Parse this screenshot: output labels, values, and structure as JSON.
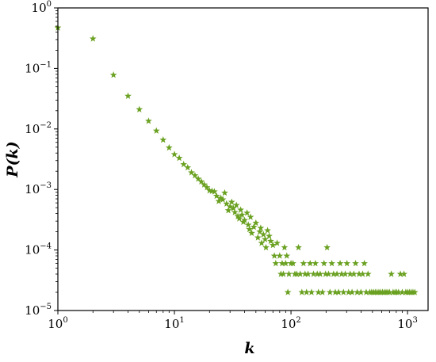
{
  "chart_data": {
    "type": "scatter",
    "title": "",
    "xlabel": "k",
    "ylabel": "P(k)",
    "x_scale": "log",
    "y_scale": "log",
    "xlim": [
      1,
      1500
    ],
    "ylim": [
      1e-05,
      1
    ],
    "grid": false,
    "marker": "star",
    "color": "#6aa121",
    "x_ticks": [
      {
        "base": "10",
        "exp": "0",
        "value": 1
      },
      {
        "base": "10",
        "exp": "1",
        "value": 10
      },
      {
        "base": "10",
        "exp": "2",
        "value": 100
      },
      {
        "base": "10",
        "exp": "3",
        "value": 1000
      }
    ],
    "y_ticks": [
      {
        "base": "10",
        "exp": "0",
        "value": 1
      },
      {
        "base": "10",
        "exp": "−1",
        "value": 0.1
      },
      {
        "base": "10",
        "exp": "−2",
        "value": 0.01
      },
      {
        "base": "10",
        "exp": "−3",
        "value": 0.001
      },
      {
        "base": "10",
        "exp": "−4",
        "value": 0.0001
      },
      {
        "base": "10",
        "exp": "−5",
        "value": 1e-05
      }
    ],
    "series": [
      {
        "points": [
          [
            1,
            0.47
          ],
          [
            2,
            0.31
          ],
          [
            3,
            0.078
          ],
          [
            4,
            0.035
          ],
          [
            5,
            0.021
          ],
          [
            6,
            0.0135
          ],
          [
            7,
            0.0093
          ],
          [
            8,
            0.0066
          ],
          [
            9,
            0.0049
          ],
          [
            10,
            0.0038
          ],
          [
            11,
            0.0033
          ],
          [
            12,
            0.0026
          ],
          [
            13,
            0.0023
          ],
          [
            14,
            0.0019
          ],
          [
            15,
            0.0017
          ],
          [
            16,
            0.0015
          ],
          [
            17,
            0.00135
          ],
          [
            18,
            0.0012
          ],
          [
            19,
            0.00108
          ],
          [
            20,
            0.00096
          ],
          [
            21,
            0.00094
          ],
          [
            22,
            0.00092
          ],
          [
            23,
            0.00078
          ],
          [
            24,
            0.00064
          ],
          [
            25,
            0.00072
          ],
          [
            26,
            0.00068
          ],
          [
            27,
            0.00088
          ],
          [
            28,
            0.00058
          ],
          [
            29,
            0.00045
          ],
          [
            30,
            0.00052
          ],
          [
            31,
            0.00062
          ],
          [
            32,
            0.00049
          ],
          [
            33,
            0.00042
          ],
          [
            34,
            0.00055
          ],
          [
            35,
            0.00036
          ],
          [
            36,
            0.00033
          ],
          [
            37,
            0.00046
          ],
          [
            38,
            0.00038
          ],
          [
            39,
            0.00029
          ],
          [
            40,
            0.00031
          ],
          [
            42,
            0.00041
          ],
          [
            43,
            0.00026
          ],
          [
            44,
            0.00022
          ],
          [
            45,
            0.00035
          ],
          [
            46,
            0.00019
          ],
          [
            48,
            0.00024
          ],
          [
            50,
            0.00028
          ],
          [
            52,
            0.00016
          ],
          [
            54,
            0.0002
          ],
          [
            55,
            0.00023
          ],
          [
            56,
            0.00013
          ],
          [
            58,
            0.00018
          ],
          [
            60,
            0.00015
          ],
          [
            61,
            0.00011
          ],
          [
            63,
            0.00021
          ],
          [
            65,
            0.00017
          ],
          [
            67,
            0.00014
          ],
          [
            70,
            0.00012
          ],
          [
            72,
            8e-05
          ],
          [
            74,
            6e-05
          ],
          [
            76,
            0.00013
          ],
          [
            80,
            8e-05
          ],
          [
            82,
            4e-05
          ],
          [
            84,
            6e-05
          ],
          [
            86,
            4e-05
          ],
          [
            88,
            0.00011
          ],
          [
            90,
            6e-05
          ],
          [
            92,
            8e-05
          ],
          [
            94,
            2e-05
          ],
          [
            96,
            4e-05
          ],
          [
            100,
            6e-05
          ],
          [
            104,
            6e-05
          ],
          [
            108,
            4e-05
          ],
          [
            112,
            4e-05
          ],
          [
            116,
            0.00011
          ],
          [
            120,
            4e-05
          ],
          [
            124,
            2e-05
          ],
          [
            128,
            6e-05
          ],
          [
            132,
            4e-05
          ],
          [
            136,
            2e-05
          ],
          [
            140,
            4e-05
          ],
          [
            146,
            6e-05
          ],
          [
            150,
            2e-05
          ],
          [
            156,
            4e-05
          ],
          [
            162,
            6e-05
          ],
          [
            168,
            4e-05
          ],
          [
            172,
            2e-05
          ],
          [
            178,
            4e-05
          ],
          [
            186,
            2e-05
          ],
          [
            192,
            6e-05
          ],
          [
            198,
            4e-05
          ],
          [
            204,
            0.00011
          ],
          [
            210,
            4e-05
          ],
          [
            216,
            2e-05
          ],
          [
            224,
            6e-05
          ],
          [
            232,
            4e-05
          ],
          [
            240,
            2e-05
          ],
          [
            248,
            4e-05
          ],
          [
            256,
            2e-05
          ],
          [
            264,
            6e-05
          ],
          [
            272,
            4e-05
          ],
          [
            282,
            2e-05
          ],
          [
            292,
            4e-05
          ],
          [
            302,
            6e-05
          ],
          [
            312,
            2e-05
          ],
          [
            322,
            4e-05
          ],
          [
            334,
            2e-05
          ],
          [
            346,
            4e-05
          ],
          [
            358,
            6e-05
          ],
          [
            370,
            2e-05
          ],
          [
            384,
            4e-05
          ],
          [
            398,
            2e-05
          ],
          [
            412,
            4e-05
          ],
          [
            426,
            6e-05
          ],
          [
            442,
            2e-05
          ],
          [
            458,
            4e-05
          ],
          [
            474,
            2e-05
          ],
          [
            492,
            2e-05
          ],
          [
            510,
            2e-05
          ],
          [
            528,
            2e-05
          ],
          [
            548,
            2e-05
          ],
          [
            568,
            2e-05
          ],
          [
            588,
            2e-05
          ],
          [
            610,
            2e-05
          ],
          [
            632,
            2e-05
          ],
          [
            654,
            2e-05
          ],
          [
            676,
            2e-05
          ],
          [
            700,
            2e-05
          ],
          [
            726,
            4e-05
          ],
          [
            752,
            2e-05
          ],
          [
            780,
            2e-05
          ],
          [
            808,
            2e-05
          ],
          [
            838,
            2e-05
          ],
          [
            868,
            4e-05
          ],
          [
            900,
            2e-05
          ],
          [
            932,
            4e-05
          ],
          [
            966,
            2e-05
          ],
          [
            1000,
            2e-05
          ],
          [
            1036,
            2e-05
          ],
          [
            1074,
            2e-05
          ],
          [
            1113,
            2e-05
          ],
          [
            1154,
            2e-05
          ]
        ]
      }
    ]
  }
}
